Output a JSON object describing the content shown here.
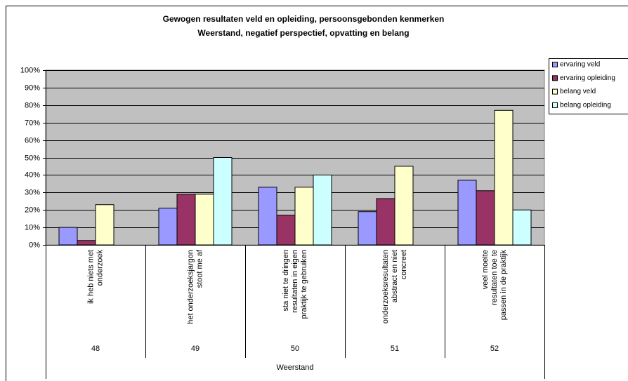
{
  "chart_data": {
    "type": "bar",
    "title": [
      "Gewogen resultaten veld en opleiding, persoonsgebonden kenmerken",
      "Weerstand, negatief perspectief, opvatting en belang"
    ],
    "categories": [
      [
        "ik heb niets met",
        "onderzoek"
      ],
      [
        "het onderzoeksjargon",
        "stoot me af"
      ],
      [
        "sta niet te dringen",
        "resultaten in eigen",
        "praktijk te gebruiken"
      ],
      [
        "onderzoeksresultaten",
        "abstract en niet",
        "concreet"
      ],
      [
        "veel moeite",
        "resultaten toe te",
        "passen in de praktijk"
      ]
    ],
    "category_codes": [
      "48",
      "49",
      "50",
      "51",
      "52"
    ],
    "group_label": "Weerstand",
    "series": [
      {
        "name": "ervaring veld",
        "color": "#9999ff",
        "values": [
          10,
          21,
          33,
          19,
          37
        ]
      },
      {
        "name": "ervaring opleiding",
        "color": "#993366",
        "values": [
          2.5,
          29,
          17,
          26.5,
          31
        ]
      },
      {
        "name": "belang veld",
        "color": "#ffffcc",
        "values": [
          23,
          29,
          33,
          45,
          77
        ]
      },
      {
        "name": "belang opleiding",
        "color": "#ccffff",
        "values": [
          0,
          50,
          40,
          0,
          20
        ]
      }
    ],
    "ylim": [
      0,
      100
    ],
    "yticks": [
      {
        "value": 0,
        "label": "0%"
      },
      {
        "value": 10,
        "label": "10%"
      },
      {
        "value": 20,
        "label": "20%"
      },
      {
        "value": 30,
        "label": "30%"
      },
      {
        "value": 40,
        "label": "40%"
      },
      {
        "value": 50,
        "label": "50%"
      },
      {
        "value": 60,
        "label": "60%"
      },
      {
        "value": 70,
        "label": "70%"
      },
      {
        "value": 80,
        "label": "80%"
      },
      {
        "value": 90,
        "label": "90%"
      },
      {
        "value": 100,
        "label": "100%"
      }
    ],
    "grid": true,
    "legend": "right"
  }
}
